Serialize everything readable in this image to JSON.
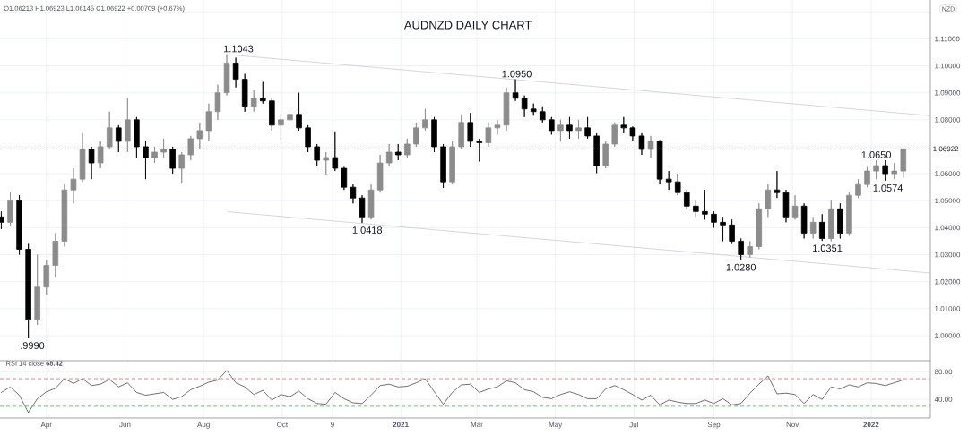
{
  "chart_data": [
    {
      "type": "candlestick",
      "title": "AUDNZD DAILY CHART",
      "annotations": [
        "O1.06213 H1.06923 L1.06145 C1.06922 +0.00709 (+0.67%)",
        "NZD",
        {
          "text": ".9990",
          "x": "2020-03-21",
          "y": 0.999
        },
        {
          "text": "1.1043",
          "x": "2020-08-28",
          "y": 1.1043
        },
        {
          "text": "1.0418",
          "x": "2020-12-06",
          "y": 1.0418
        },
        {
          "text": "1.0950",
          "x": "2021-04-01",
          "y": 1.095
        },
        {
          "text": "1.0280",
          "x": "2021-09-22",
          "y": 1.028
        },
        {
          "text": "1.0351",
          "x": "2021-11-28",
          "y": 1.0351
        },
        {
          "text": "1.0650",
          "x": "2022-01-05",
          "y": 1.065
        },
        {
          "text": "1.0574",
          "x": "2022-01-14",
          "y": 1.0574
        }
      ],
      "x": [
        "2020-02-26",
        "2020-03-04",
        "2020-03-11",
        "2020-03-18",
        "2020-03-25",
        "2020-04-01",
        "2020-04-08",
        "2020-04-15",
        "2020-04-22",
        "2020-04-29",
        "2020-05-06",
        "2020-05-13",
        "2020-05-20",
        "2020-05-27",
        "2020-06-03",
        "2020-06-10",
        "2020-06-17",
        "2020-06-24",
        "2020-07-01",
        "2020-07-08",
        "2020-07-15",
        "2020-07-22",
        "2020-07-29",
        "2020-08-05",
        "2020-08-12",
        "2020-08-19",
        "2020-08-26",
        "2020-09-02",
        "2020-09-09",
        "2020-09-16",
        "2020-09-23",
        "2020-09-30",
        "2020-10-07",
        "2020-10-14",
        "2020-10-21",
        "2020-10-28",
        "2020-11-04",
        "2020-11-11",
        "2020-11-18",
        "2020-11-25",
        "2020-12-02",
        "2020-12-09",
        "2020-12-16",
        "2020-12-23",
        "2020-12-30",
        "2021-01-06",
        "2021-01-13",
        "2021-01-20",
        "2021-01-27",
        "2021-02-03",
        "2021-02-10",
        "2021-02-17",
        "2021-02-24",
        "2021-03-03",
        "2021-03-10",
        "2021-03-17",
        "2021-03-24",
        "2021-03-31",
        "2021-04-07",
        "2021-04-14",
        "2021-04-21",
        "2021-04-28",
        "2021-05-05",
        "2021-05-12",
        "2021-05-19",
        "2021-05-26",
        "2021-06-02",
        "2021-06-09",
        "2021-06-16",
        "2021-06-23",
        "2021-06-30",
        "2021-07-07",
        "2021-07-14",
        "2021-07-21",
        "2021-07-28",
        "2021-08-04",
        "2021-08-11",
        "2021-08-18",
        "2021-08-25",
        "2021-09-01",
        "2021-09-08",
        "2021-09-15",
        "2021-09-22",
        "2021-09-29",
        "2021-10-06",
        "2021-10-13",
        "2021-10-20",
        "2021-10-27",
        "2021-11-03",
        "2021-11-10",
        "2021-11-17",
        "2021-11-24",
        "2021-12-01",
        "2021-12-08",
        "2021-12-15",
        "2021-12-22",
        "2021-12-29",
        "2022-01-05",
        "2022-01-12",
        "2022-01-19",
        "2022-01-26"
      ],
      "ohlc": [
        [
          1.044,
          1.046,
          1.0395,
          1.042
        ],
        [
          1.042,
          1.0531,
          1.0405,
          1.05
        ],
        [
          1.05,
          1.052,
          1.03,
          1.032
        ],
        [
          1.032,
          1.034,
          0.999,
          1.006
        ],
        [
          1.006,
          1.03,
          1.004,
          1.018
        ],
        [
          1.018,
          1.028,
          1.015,
          1.026
        ],
        [
          1.026,
          1.038,
          1.0215,
          1.035
        ],
        [
          1.035,
          1.056,
          1.033,
          1.054
        ],
        [
          1.054,
          1.062,
          1.049,
          1.058
        ],
        [
          1.058,
          1.075,
          1.057,
          1.069
        ],
        [
          1.069,
          1.07,
          1.058,
          1.064
        ],
        [
          1.064,
          1.072,
          1.062,
          1.07
        ],
        [
          1.07,
          1.083,
          1.069,
          1.077
        ],
        [
          1.077,
          1.078,
          1.068,
          1.072
        ],
        [
          1.072,
          1.088,
          1.068,
          1.08
        ],
        [
          1.08,
          1.081,
          1.066,
          1.07
        ],
        [
          1.07,
          1.072,
          1.058,
          1.066
        ],
        [
          1.066,
          1.07,
          1.064,
          1.068
        ],
        [
          1.068,
          1.073,
          1.066,
          1.069
        ],
        [
          1.069,
          1.07,
          1.06,
          1.062
        ],
        [
          1.062,
          1.068,
          1.0565,
          1.067
        ],
        [
          1.067,
          1.074,
          1.065,
          1.073
        ],
        [
          1.073,
          1.079,
          1.069,
          1.076
        ],
        [
          1.076,
          1.086,
          1.072,
          1.083
        ],
        [
          1.083,
          1.093,
          1.08,
          1.09
        ],
        [
          1.09,
          1.1043,
          1.089,
          1.101
        ],
        [
          1.101,
          1.103,
          1.092,
          1.095
        ],
        [
          1.095,
          1.097,
          1.083,
          1.085
        ],
        [
          1.085,
          1.091,
          1.083,
          1.088
        ],
        [
          1.088,
          1.094,
          1.086,
          1.087
        ],
        [
          1.087,
          1.088,
          1.076,
          1.078
        ],
        [
          1.078,
          1.082,
          1.072,
          1.08
        ],
        [
          1.08,
          1.084,
          1.079,
          1.082
        ],
        [
          1.082,
          1.09,
          1.076,
          1.077
        ],
        [
          1.077,
          1.078,
          1.068,
          1.07
        ],
        [
          1.07,
          1.071,
          1.063,
          1.065
        ],
        [
          1.065,
          1.068,
          1.0597,
          1.066
        ],
        [
          1.066,
          1.0757,
          1.061,
          1.062
        ],
        [
          1.062,
          1.0625,
          1.054,
          1.055
        ],
        [
          1.055,
          1.056,
          1.049,
          1.051
        ],
        [
          1.051,
          1.052,
          1.0418,
          1.044
        ],
        [
          1.044,
          1.056,
          1.043,
          1.054
        ],
        [
          1.054,
          1.067,
          1.053,
          1.064
        ],
        [
          1.064,
          1.071,
          1.063,
          1.068
        ],
        [
          1.068,
          1.071,
          1.065,
          1.067
        ],
        [
          1.067,
          1.073,
          1.066,
          1.071
        ],
        [
          1.071,
          1.079,
          1.07,
          1.077
        ],
        [
          1.077,
          1.084,
          1.076,
          1.08
        ],
        [
          1.08,
          1.081,
          1.068,
          1.07
        ],
        [
          1.07,
          1.071,
          1.0547,
          1.057
        ],
        [
          1.057,
          1.072,
          1.056,
          1.07
        ],
        [
          1.07,
          1.082,
          1.069,
          1.079
        ],
        [
          1.079,
          1.0825,
          1.07,
          1.072
        ],
        [
          1.072,
          1.073,
          1.0645,
          1.0715
        ],
        [
          1.0715,
          1.079,
          1.07,
          1.077
        ],
        [
          1.077,
          1.08,
          1.0745,
          1.078
        ],
        [
          1.078,
          1.092,
          1.076,
          1.09
        ],
        [
          1.09,
          1.095,
          1.087,
          1.088
        ],
        [
          1.088,
          1.089,
          1.081,
          1.084
        ],
        [
          1.084,
          1.086,
          1.0815,
          1.083
        ],
        [
          1.083,
          1.085,
          1.079,
          1.08
        ],
        [
          1.08,
          1.081,
          1.0745,
          1.076
        ],
        [
          1.076,
          1.08,
          1.072,
          1.078
        ],
        [
          1.078,
          1.081,
          1.073,
          1.076
        ],
        [
          1.076,
          1.08,
          1.073,
          1.077
        ],
        [
          1.077,
          1.081,
          1.073,
          1.074
        ],
        [
          1.074,
          1.075,
          1.0602,
          1.063
        ],
        [
          1.063,
          1.072,
          1.062,
          1.071
        ],
        [
          1.071,
          1.079,
          1.07,
          1.078
        ],
        [
          1.078,
          1.081,
          1.075,
          1.077
        ],
        [
          1.077,
          1.0775,
          1.072,
          1.074
        ],
        [
          1.074,
          1.075,
          1.067,
          1.069
        ],
        [
          1.069,
          1.074,
          1.066,
          1.072
        ],
        [
          1.072,
          1.0725,
          1.056,
          1.058
        ],
        [
          1.058,
          1.061,
          1.054,
          1.057
        ],
        [
          1.057,
          1.06,
          1.052,
          1.053
        ],
        [
          1.053,
          1.054,
          1.047,
          1.048
        ],
        [
          1.048,
          1.05,
          1.044,
          1.046
        ],
        [
          1.046,
          1.054,
          1.043,
          1.045
        ],
        [
          1.045,
          1.046,
          1.04,
          1.042
        ],
        [
          1.042,
          1.044,
          1.035,
          1.041
        ],
        [
          1.041,
          1.043,
          1.034,
          1.035
        ],
        [
          1.035,
          1.036,
          1.028,
          1.03
        ],
        [
          1.03,
          1.035,
          1.029,
          1.033
        ],
        [
          1.033,
          1.049,
          1.032,
          1.047
        ],
        [
          1.047,
          1.056,
          1.044,
          1.054
        ],
        [
          1.054,
          1.061,
          1.051,
          1.053
        ],
        [
          1.053,
          1.054,
          1.042,
          1.044
        ],
        [
          1.044,
          1.052,
          1.043,
          1.048
        ],
        [
          1.048,
          1.049,
          1.036,
          1.038
        ],
        [
          1.038,
          1.044,
          1.036,
          1.042
        ],
        [
          1.042,
          1.045,
          1.0351,
          1.036
        ],
        [
          1.036,
          1.05,
          1.035,
          1.047
        ],
        [
          1.047,
          1.049,
          1.036,
          1.038
        ],
        [
          1.038,
          1.053,
          1.037,
          1.052
        ],
        [
          1.052,
          1.058,
          1.051,
          1.056
        ],
        [
          1.056,
          1.0625,
          1.055,
          1.061
        ],
        [
          1.061,
          1.065,
          1.058,
          1.063
        ],
        [
          1.063,
          1.065,
          1.0574,
          1.06
        ],
        [
          1.06,
          1.064,
          1.058,
          1.061
        ],
        [
          1.061,
          1.06923,
          1.0585,
          1.06922
        ]
      ],
      "colors": [
        "#000000",
        "#8c8c8c",
        "#000000",
        "#000000",
        "#8c8c8c",
        "#8c8c8c",
        "#8c8c8c",
        "#8c8c8c",
        "#8c8c8c",
        "#8c8c8c",
        "#000000",
        "#8c8c8c",
        "#8c8c8c",
        "#000000",
        "#8c8c8c",
        "#000000",
        "#000000",
        "#8c8c8c",
        "#8c8c8c",
        "#000000",
        "#8c8c8c",
        "#8c8c8c",
        "#8c8c8c",
        "#8c8c8c",
        "#8c8c8c",
        "#8c8c8c",
        "#000000",
        "#000000",
        "#8c8c8c",
        "#000000",
        "#000000",
        "#8c8c8c",
        "#8c8c8c",
        "#000000",
        "#000000",
        "#000000",
        "#8c8c8c",
        "#000000",
        "#000000",
        "#000000",
        "#000000",
        "#8c8c8c",
        "#8c8c8c",
        "#8c8c8c",
        "#000000",
        "#8c8c8c",
        "#8c8c8c",
        "#8c8c8c",
        "#000000",
        "#000000",
        "#8c8c8c",
        "#8c8c8c",
        "#000000",
        "#000000",
        "#8c8c8c",
        "#8c8c8c",
        "#8c8c8c",
        "#000000",
        "#000000",
        "#000000",
        "#000000",
        "#000000",
        "#8c8c8c",
        "#000000",
        "#8c8c8c",
        "#000000",
        "#000000",
        "#8c8c8c",
        "#8c8c8c",
        "#000000",
        "#000000",
        "#000000",
        "#8c8c8c",
        "#000000",
        "#000000",
        "#000000",
        "#000000",
        "#000000",
        "#000000",
        "#000000",
        "#000000",
        "#000000",
        "#000000",
        "#8c8c8c",
        "#8c8c8c",
        "#8c8c8c",
        "#000000",
        "#000000",
        "#8c8c8c",
        "#000000",
        "#8c8c8c",
        "#000000",
        "#8c8c8c",
        "#000000",
        "#8c8c8c",
        "#8c8c8c",
        "#8c8c8c",
        "#8c8c8c",
        "#000000",
        "#8c8c8c",
        "#8c8c8c"
      ],
      "series": [
        {
          "type": "line",
          "x": [
            "2020-08-21",
            "2022-02-16"
          ],
          "values": [
            1.1041,
            1.0815
          ],
          "color": "#c3c6ce"
        },
        {
          "type": "line",
          "x": [
            "2020-08-20",
            "2022-02-16"
          ],
          "values": [
            1.0459,
            1.0232
          ],
          "color": "#c3c6ce"
        }
      ],
      "xlim": [
        "2020-02-25",
        "2022-02-16"
      ],
      "ylim": [
        0.9907,
        1.1244
      ],
      "xticks": [
        {
          "value": "2020-04-01",
          "label": null
        },
        {
          "value": "2020-06-01",
          "label": null
        },
        {
          "value": "2020-08-01",
          "label": null
        },
        {
          "value": "2020-10-01",
          "label": null
        },
        {
          "value": "2020-11-09",
          "label": null
        },
        {
          "value": "2021-01-01",
          "label": null
        },
        {
          "value": "2021-03-01",
          "label": null
        },
        {
          "value": "2021-05-01",
          "label": null
        },
        {
          "value": "2021-07-01",
          "label": null
        },
        {
          "value": "2021-09-01",
          "label": null
        },
        {
          "value": "2021-11-01",
          "label": null
        },
        {
          "value": "2022-01-01",
          "label": null
        }
      ],
      "yticks": [
        {
          "value": 1.0,
          "label": "1.00000"
        },
        {
          "value": 1.01,
          "label": "1.01000"
        },
        {
          "value": 1.02,
          "label": "1.02000"
        },
        {
          "value": 1.03,
          "label": "1.03000"
        },
        {
          "value": 1.04,
          "label": "1.04000"
        },
        {
          "value": 1.05,
          "label": "1.05000"
        },
        {
          "value": 1.06,
          "label": "1.06000"
        },
        {
          "value": 1.07,
          "label": null
        },
        {
          "value": 1.08,
          "label": "1.08000"
        },
        {
          "value": 1.09,
          "label": "1.09000"
        },
        {
          "value": 1.1,
          "label": "1.10000"
        },
        {
          "value": 1.11,
          "label": "1.11000"
        },
        {
          "value": 1.12,
          "label": null
        }
      ],
      "ref_lines": [
        {
          "axis": "y",
          "value": 1.06922,
          "label": "1.06922",
          "color": "#9e9e9e",
          "line_style": "dotted"
        }
      ],
      "grid": true,
      "tick_labels": "y"
    },
    {
      "type": "line",
      "title": "RSI 14 close **68.42**",
      "x": [
        "2020-02-26",
        "2020-03-04",
        "2020-03-11",
        "2020-03-18",
        "2020-03-25",
        "2020-04-01",
        "2020-04-08",
        "2020-04-15",
        "2020-04-22",
        "2020-04-29",
        "2020-05-06",
        "2020-05-13",
        "2020-05-20",
        "2020-05-27",
        "2020-06-03",
        "2020-06-10",
        "2020-06-17",
        "2020-06-24",
        "2020-07-01",
        "2020-07-08",
        "2020-07-15",
        "2020-07-22",
        "2020-07-29",
        "2020-08-05",
        "2020-08-12",
        "2020-08-19",
        "2020-08-26",
        "2020-09-02",
        "2020-09-09",
        "2020-09-16",
        "2020-09-23",
        "2020-09-30",
        "2020-10-07",
        "2020-10-14",
        "2020-10-21",
        "2020-10-28",
        "2020-11-04",
        "2020-11-11",
        "2020-11-18",
        "2020-11-25",
        "2020-12-02",
        "2020-12-09",
        "2020-12-16",
        "2020-12-23",
        "2020-12-30",
        "2021-01-06",
        "2021-01-13",
        "2021-01-20",
        "2021-01-27",
        "2021-02-03",
        "2021-02-10",
        "2021-02-17",
        "2021-02-24",
        "2021-03-03",
        "2021-03-10",
        "2021-03-17",
        "2021-03-24",
        "2021-03-31",
        "2021-04-07",
        "2021-04-14",
        "2021-04-21",
        "2021-04-28",
        "2021-05-05",
        "2021-05-12",
        "2021-05-19",
        "2021-05-26",
        "2021-06-02",
        "2021-06-09",
        "2021-06-16",
        "2021-06-23",
        "2021-06-30",
        "2021-07-07",
        "2021-07-14",
        "2021-07-21",
        "2021-07-28",
        "2021-08-04",
        "2021-08-11",
        "2021-08-18",
        "2021-08-25",
        "2021-09-01",
        "2021-09-08",
        "2021-09-15",
        "2021-09-22",
        "2021-09-29",
        "2021-10-06",
        "2021-10-13",
        "2021-10-20",
        "2021-10-27",
        "2021-11-03",
        "2021-11-10",
        "2021-11-17",
        "2021-11-24",
        "2021-12-01",
        "2021-12-08",
        "2021-12-15",
        "2021-12-22",
        "2021-12-29",
        "2022-01-05",
        "2022-01-12",
        "2022-01-19",
        "2022-01-26"
      ],
      "values": [
        50,
        58,
        46,
        21,
        41,
        51,
        56,
        70,
        63,
        70,
        60,
        62,
        69,
        58,
        64,
        50,
        46,
        48,
        50,
        40,
        44,
        54,
        59,
        65,
        68,
        82,
        64,
        58,
        47,
        53,
        39,
        47,
        44,
        52,
        41,
        34,
        33,
        50,
        41,
        35,
        34,
        46,
        60,
        62,
        58,
        59,
        64,
        70,
        51,
        33,
        50,
        61,
        62,
        50,
        55,
        58,
        67,
        64,
        54,
        51,
        43,
        41,
        47,
        51,
        47,
        41,
        41,
        55,
        60,
        54,
        47,
        39,
        46,
        32,
        39,
        36,
        34,
        34,
        39,
        34,
        41,
        32,
        34,
        49,
        62,
        74,
        48,
        49,
        47,
        34,
        47,
        40,
        58,
        55,
        61,
        58,
        64,
        63,
        60,
        64,
        68.42
      ],
      "color": "#333333",
      "xlim": [
        "2020-02-25",
        "2022-02-16"
      ],
      "ylim": [
        13,
        96
      ],
      "xticks": [
        {
          "value": "2020-04-01",
          "label": "Apr"
        },
        {
          "value": "2020-06-01",
          "label": "Jun"
        },
        {
          "value": "2020-08-01",
          "label": "Aug"
        },
        {
          "value": "2020-10-01",
          "label": "Oct"
        },
        {
          "value": "2020-11-09",
          "label": "9"
        },
        {
          "value": "2021-01-01",
          "label": "2021"
        },
        {
          "value": "2021-03-01",
          "label": "Mar"
        },
        {
          "value": "2021-05-01",
          "label": "May"
        },
        {
          "value": "2021-07-01",
          "label": "Jul"
        },
        {
          "value": "2021-09-01",
          "label": "Sep"
        },
        {
          "value": "2021-11-01",
          "label": "Nov"
        },
        {
          "value": "2022-01-01",
          "label": "2022"
        }
      ],
      "yticks": [
        {
          "value": 80,
          "label": "80.00"
        },
        {
          "value": 40,
          "label": "40.00"
        }
      ],
      "ref_lines": [
        {
          "axis": "y",
          "value": 70,
          "color": "#f0605d",
          "line_style": "dashed"
        },
        {
          "axis": "y",
          "value": 30,
          "color": "#4caf50",
          "line_style": "dashed"
        }
      ],
      "grid": true
    }
  ]
}
